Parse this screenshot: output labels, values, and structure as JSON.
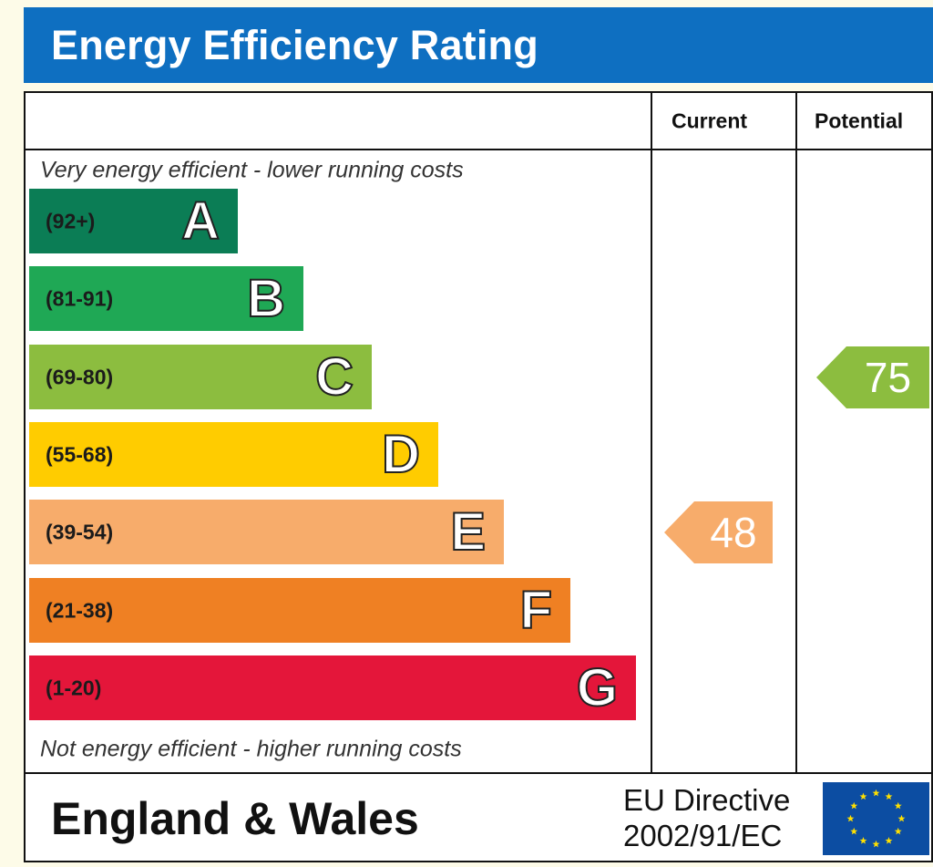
{
  "header": {
    "title": "Energy Efficiency Rating"
  },
  "columns": {
    "current": "Current",
    "potential": "Potential"
  },
  "captions": {
    "top": "Very energy efficient - lower running costs",
    "bottom": "Not energy efficient - higher running costs"
  },
  "footer": {
    "region": "England & Wales",
    "directive_line1": "EU Directive",
    "directive_line2": "2002/91/EC"
  },
  "chart_data": {
    "type": "bar",
    "title": "Energy Efficiency Rating",
    "categories": [
      "A",
      "B",
      "C",
      "D",
      "E",
      "F",
      "G"
    ],
    "bands": [
      {
        "letter": "A",
        "range": "(92+)",
        "color": "#0b7d55"
      },
      {
        "letter": "B",
        "range": "(81-91)",
        "color": "#1fa855"
      },
      {
        "letter": "C",
        "range": "(69-80)",
        "color": "#8cbd3f"
      },
      {
        "letter": "D",
        "range": "(55-68)",
        "color": "#ffcc00"
      },
      {
        "letter": "E",
        "range": "(39-54)",
        "color": "#f7ac6b"
      },
      {
        "letter": "F",
        "range": "(21-38)",
        "color": "#ef8023"
      },
      {
        "letter": "G",
        "range": "(1-20)",
        "color": "#e4163a"
      }
    ],
    "series": [
      {
        "name": "Current",
        "value": 48,
        "band": "E",
        "color": "#f7ac6b"
      },
      {
        "name": "Potential",
        "value": 75,
        "band": "C",
        "color": "#8cbd3f"
      }
    ]
  }
}
